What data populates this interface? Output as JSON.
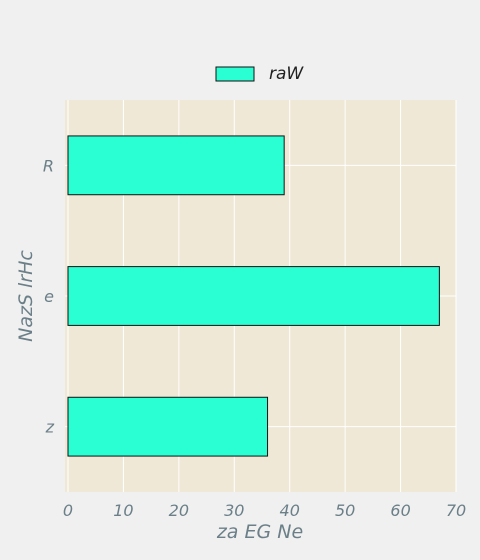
{
  "chart_data": {
    "type": "bar",
    "orientation": "horizontal",
    "categories": [
      "R",
      "e",
      "z"
    ],
    "series": [
      {
        "name": "raW",
        "values": [
          39,
          67,
          36
        ]
      }
    ],
    "xlabel": "za  EG Ne",
    "ylabel": "NazS lrHc",
    "xlim": [
      0,
      70
    ],
    "xticks": [
      0,
      10,
      20,
      30,
      40,
      50,
      60,
      70
    ],
    "grid": true,
    "legend_position": "top-center",
    "colors": {
      "bar_fill": "#2affd4",
      "bar_stroke": "#111111",
      "plot_background": "#efe8d6",
      "figure_background": "#f0f0f0",
      "grid": "#ffffff",
      "text": "#6b7f88"
    }
  }
}
